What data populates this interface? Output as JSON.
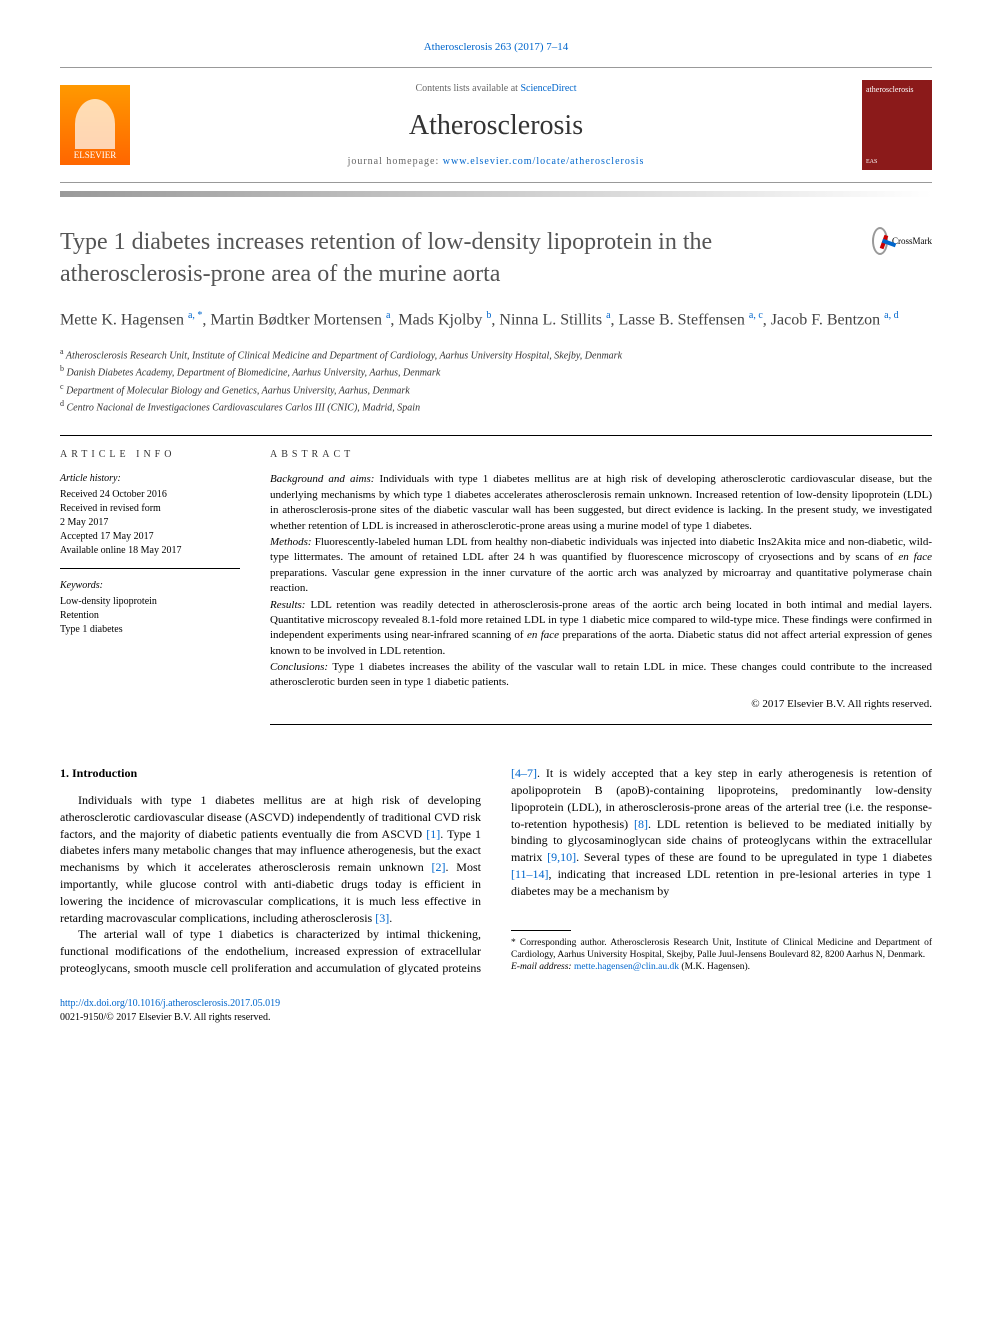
{
  "citation": "Atherosclerosis 263 (2017) 7–14",
  "header": {
    "contents_prefix": "Contents lists available at ",
    "contents_link": "ScienceDirect",
    "journal_name": "Atherosclerosis",
    "homepage_prefix": "journal homepage: ",
    "homepage_url": "www.elsevier.com/locate/atherosclerosis",
    "publisher": "ELSEVIER",
    "cover_text": "atherosclerosis"
  },
  "title": "Type 1 diabetes increases retention of low-density lipoprotein in the atherosclerosis-prone area of the murine aorta",
  "crossmark_label": "CrossMark",
  "authors_html": "Mette K. Hagensen <sup>a, *</sup>, Martin Bødtker Mortensen <sup>a</sup>, Mads Kjolby <sup>b</sup>, Ninna L. Stillits <sup>a</sup>, Lasse B. Steffensen <sup>a, c</sup>, Jacob F. Bentzon <sup>a, d</sup>",
  "affiliations": [
    {
      "sup": "a",
      "text": "Atherosclerosis Research Unit, Institute of Clinical Medicine and Department of Cardiology, Aarhus University Hospital, Skejby, Denmark"
    },
    {
      "sup": "b",
      "text": "Danish Diabetes Academy, Department of Biomedicine, Aarhus University, Aarhus, Denmark"
    },
    {
      "sup": "c",
      "text": "Department of Molecular Biology and Genetics, Aarhus University, Aarhus, Denmark"
    },
    {
      "sup": "d",
      "text": "Centro Nacional de Investigaciones Cardiovasculares Carlos III (CNIC), Madrid, Spain"
    }
  ],
  "info": {
    "heading": "ARTICLE INFO",
    "history_label": "Article history:",
    "history": [
      "Received 24 October 2016",
      "Received in revised form",
      "2 May 2017",
      "Accepted 17 May 2017",
      "Available online 18 May 2017"
    ],
    "keywords_label": "Keywords:",
    "keywords": [
      "Low-density lipoprotein",
      "Retention",
      "Type 1 diabetes"
    ]
  },
  "abstract": {
    "heading": "ABSTRACT",
    "sections": [
      {
        "label": "Background and aims:",
        "text": "Individuals with type 1 diabetes mellitus are at high risk of developing atherosclerotic cardiovascular disease, but the underlying mechanisms by which type 1 diabetes accelerates atherosclerosis remain unknown. Increased retention of low-density lipoprotein (LDL) in atherosclerosis-prone sites of the diabetic vascular wall has been suggested, but direct evidence is lacking. In the present study, we investigated whether retention of LDL is increased in atherosclerotic-prone areas using a murine model of type 1 diabetes."
      },
      {
        "label": "Methods:",
        "text": "Fluorescently-labeled human LDL from healthy non-diabetic individuals was injected into diabetic Ins2Akita mice and non-diabetic, wild-type littermates. The amount of retained LDL after 24 h was quantified by fluorescence microscopy of cryosections and by scans of en face preparations. Vascular gene expression in the inner curvature of the aortic arch was analyzed by microarray and quantitative polymerase chain reaction."
      },
      {
        "label": "Results:",
        "text": "LDL retention was readily detected in atherosclerosis-prone areas of the aortic arch being located in both intimal and medial layers. Quantitative microscopy revealed 8.1-fold more retained LDL in type 1 diabetic mice compared to wild-type mice. These findings were confirmed in independent experiments using near-infrared scanning of en face preparations of the aorta. Diabetic status did not affect arterial expression of genes known to be involved in LDL retention."
      },
      {
        "label": "Conclusions:",
        "text": "Type 1 diabetes increases the ability of the vascular wall to retain LDL in mice. These changes could contribute to the increased atherosclerotic burden seen in type 1 diabetic patients."
      }
    ],
    "copyright": "© 2017 Elsevier B.V. All rights reserved."
  },
  "introduction": {
    "heading": "1. Introduction",
    "paragraphs": [
      "Individuals with type 1 diabetes mellitus are at high risk of developing atherosclerotic cardiovascular disease (ASCVD) independently of traditional CVD risk factors, and the majority of diabetic patients eventually die from ASCVD [1]. Type 1 diabetes infers many metabolic changes that may influence atherogenesis, but the exact mechanisms by which it accelerates atherosclerosis remain unknown [2]. Most importantly, while glucose control with anti-diabetic drugs today is efficient in lowering the incidence of microvascular complications, it is much less effective in retarding macrovascular complications, including atherosclerosis [3].",
      "The arterial wall of type 1 diabetics is characterized by intimal thickening, functional modifications of the endothelium, increased expression of extracellular proteoglycans, smooth muscle cell proliferation and accumulation of glycated proteins [4–7]. It is widely accepted that a key step in early atherogenesis is retention of apolipoprotein B (apoB)-containing lipoproteins, predominantly low-density lipoprotein (LDL), in atherosclerosis-prone areas of the arterial tree (i.e. the response-to-retention hypothesis) [8]. LDL retention is believed to be mediated initially by binding to glycosaminoglycan side chains of proteoglycans within the extracellular matrix [9,10]. Several types of these are found to be upregulated in type 1 diabetes [11–14], indicating that increased LDL retention in pre-lesional arteries in type 1 diabetes may be a mechanism by"
    ]
  },
  "footnote": {
    "corresponding": "* Corresponding author. Atherosclerosis Research Unit, Institute of Clinical Medicine and Department of Cardiology, Aarhus University Hospital, Skejby, Palle Juul-Jensens Boulevard 82, 8200 Aarhus N, Denmark.",
    "email_label": "E-mail address:",
    "email": "mette.hagensen@clin.au.dk",
    "email_suffix": "(M.K. Hagensen)."
  },
  "doi": {
    "url": "http://dx.doi.org/10.1016/j.atherosclerosis.2017.05.019",
    "issn": "0021-9150/© 2017 Elsevier B.V. All rights reserved."
  },
  "colors": {
    "link": "#0066cc",
    "elsevier_orange": "#ff8800",
    "cover_red": "#8b1a1a"
  }
}
